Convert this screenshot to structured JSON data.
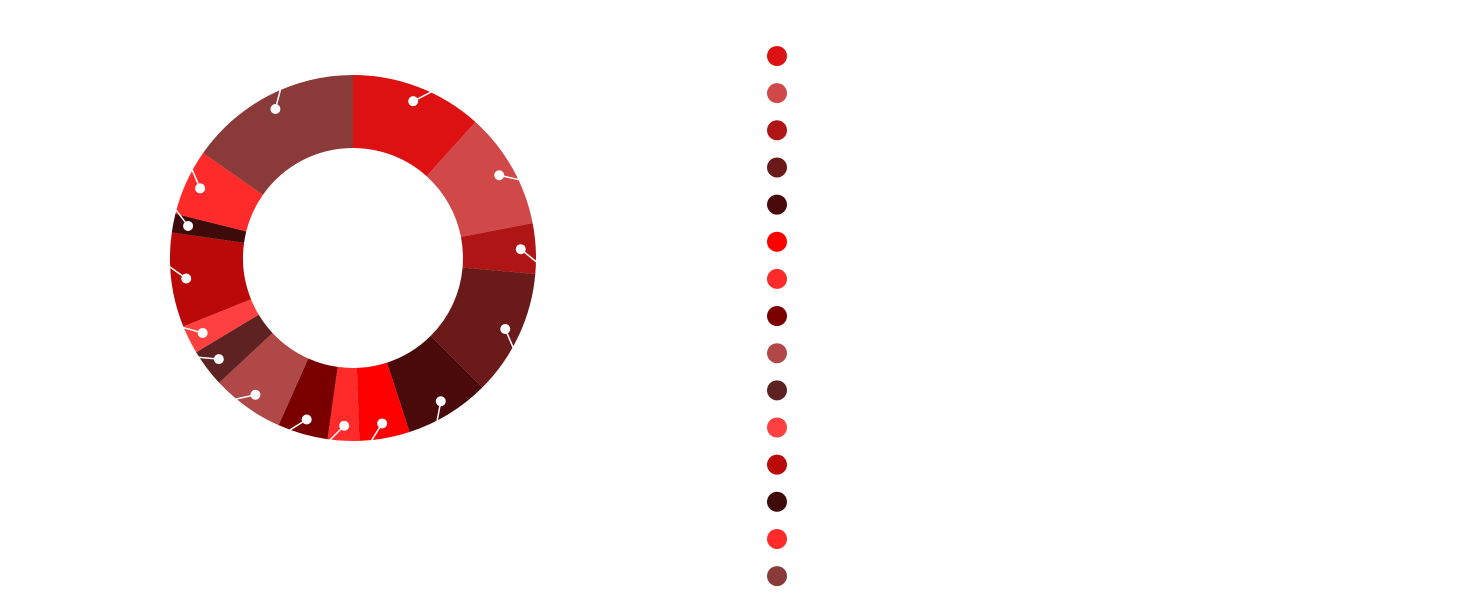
{
  "chart_data": {
    "type": "donut",
    "values": [
      42,
      37,
      16,
      40,
      27,
      16,
      10,
      16,
      23,
      12,
      9,
      30,
      6,
      21,
      55
    ],
    "colors": [
      "#dd1111",
      "#d04848",
      "#b01515",
      "#6b1a1a",
      "#4a0a0a",
      "#ff0000",
      "#ff2a2a",
      "#7a0000",
      "#b04848",
      "#5e2222",
      "#ff4040",
      "#bb0808",
      "#3f0a0a",
      "#ff2a2a",
      "#8b3a3a"
    ]
  }
}
